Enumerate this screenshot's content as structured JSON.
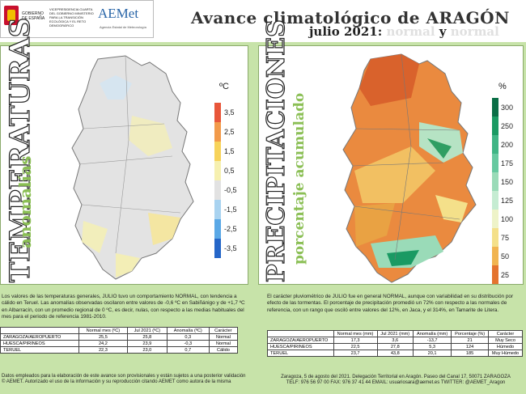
{
  "header": {
    "gov_text": "GOBIERNO DE ESPAÑA",
    "ministry_text": "VICEPRESIDENCIA CUARTA DEL GOBIERNO MINISTERIO PARA LA TRANSICIÓN ECOLÓGICA Y EL RETO DEMOGRÁFICO",
    "aemet_logo": "AEMet",
    "aemet_sub": "Agencia Estatal de Meteorología",
    "title_prefix": "Avance climatológico de ",
    "title_region": "ARAGÓN",
    "subtitle_month": "julio 2021: ",
    "subtitle_cat1": "normal",
    "subtitle_and": " y ",
    "subtitle_cat2": "normal"
  },
  "temperature": {
    "vertical_title": "TEMPERATURAS",
    "vertical_subtitle": "anomalías",
    "unit": "ºC",
    "legend": [
      {
        "label": "3,5",
        "color": "#e8563a"
      },
      {
        "label": "2,5",
        "color": "#f29a4a"
      },
      {
        "label": "1,5",
        "color": "#f7d35a"
      },
      {
        "label": "0,5",
        "color": "#f6f0b0"
      },
      {
        "label": "-0,5",
        "color": "#e2e2e2"
      },
      {
        "label": "-1,5",
        "color": "#a9d3f0"
      },
      {
        "label": "-2,5",
        "color": "#5aa8e6"
      },
      {
        "label": "-3,5",
        "color": "#2566c8"
      }
    ],
    "text": "Los valores de las temperaturas generales, JULIO tuvo un comportamiento NORMAL, con tendencia a cálido en Teruel. Las anomalías observadas oscilaron entre valores de -0,6 ºC en Sabiñánigo y de +1,7 ºC en Albarracín, con un promedio regional de 0 ºC, es decir, nulas, con respecto a las medias habituales del mes para el periodo de referencia 1981-2010.",
    "table": {
      "headers": [
        "",
        "Normal mes (ºC)",
        "Jul 2021 (ºC)",
        "Anomalía (ºC)",
        "Carácter"
      ],
      "rows": [
        [
          "ZARAGOZA/AEROPUERTO",
          "25,5",
          "25,8",
          "0,3",
          "Normal"
        ],
        [
          "HUESCA/PIRINEOS",
          "24,2",
          "23,9",
          "-0,3",
          "Normal"
        ],
        [
          "TERUEL",
          "22,3",
          "23,0",
          "0,7",
          "Cálido"
        ]
      ]
    }
  },
  "precipitation": {
    "vertical_title": "PRECIPITACIONES",
    "vertical_subtitle": "porcentaje acumulado",
    "unit": "%",
    "legend": [
      {
        "label": "300",
        "color": "#0a6e46"
      },
      {
        "label": "250",
        "color": "#1a9a63"
      },
      {
        "label": "200",
        "color": "#3fb585"
      },
      {
        "label": "175",
        "color": "#66c9a0"
      },
      {
        "label": "150",
        "color": "#9adbb8"
      },
      {
        "label": "125",
        "color": "#c5ecd2"
      },
      {
        "label": "100",
        "color": "#eef3c8"
      },
      {
        "label": "75",
        "color": "#f4e08a"
      },
      {
        "label": "50",
        "color": "#f1b450"
      },
      {
        "label": "25",
        "color": "#e4732e"
      }
    ],
    "text": "El carácter pluviométrico de JULIO fue en general NORMAL, aunque con variabilidad en su distribución por efecto de las tormentas. El porcentaje de precipitación promedió un 72% con respecto a las normales de referencia, con un rango que osciló entre valores del 12%, en Jaca, y el 314%, en Tamarite de Litera.",
    "table": {
      "headers": [
        "",
        "Normal mes (mm)",
        "Jul 2021 (mm)",
        "Anomalía (mm)",
        "Porcentaje (%)",
        "Carácter"
      ],
      "rows": [
        [
          "ZARAGOZA/AEROPUERTO",
          "17,3",
          "3,6",
          "-13,7",
          "21",
          "Muy Seco"
        ],
        [
          "HUESCA/PIRINEOS",
          "22,5",
          "27,8",
          "5,3",
          "124",
          "Húmedo"
        ],
        [
          "TERUEL",
          "23,7",
          "43,8",
          "20,1",
          "185",
          "Muy Húmedo"
        ]
      ]
    }
  },
  "footer": {
    "left_line1": "Datos empleados para la elaboración de este avance son provisionales y están sujetos a una posterior validación",
    "left_line2": "© AEMET. Autorizado el uso de la información y su reproducción citando AEMET como autora de la misma",
    "right_line1": "Zaragoza, 5 de agosto del 2021. Delegación Territorial en Aragón. Paseo del Canal 17, 50071 ZARAGOZA",
    "right_line2": "TELF: 976 56 97 00  FAX: 976 37 41 44  EMAIL: usuariosara@aemet.es  TWITTER: @AEMET_Aragon"
  }
}
